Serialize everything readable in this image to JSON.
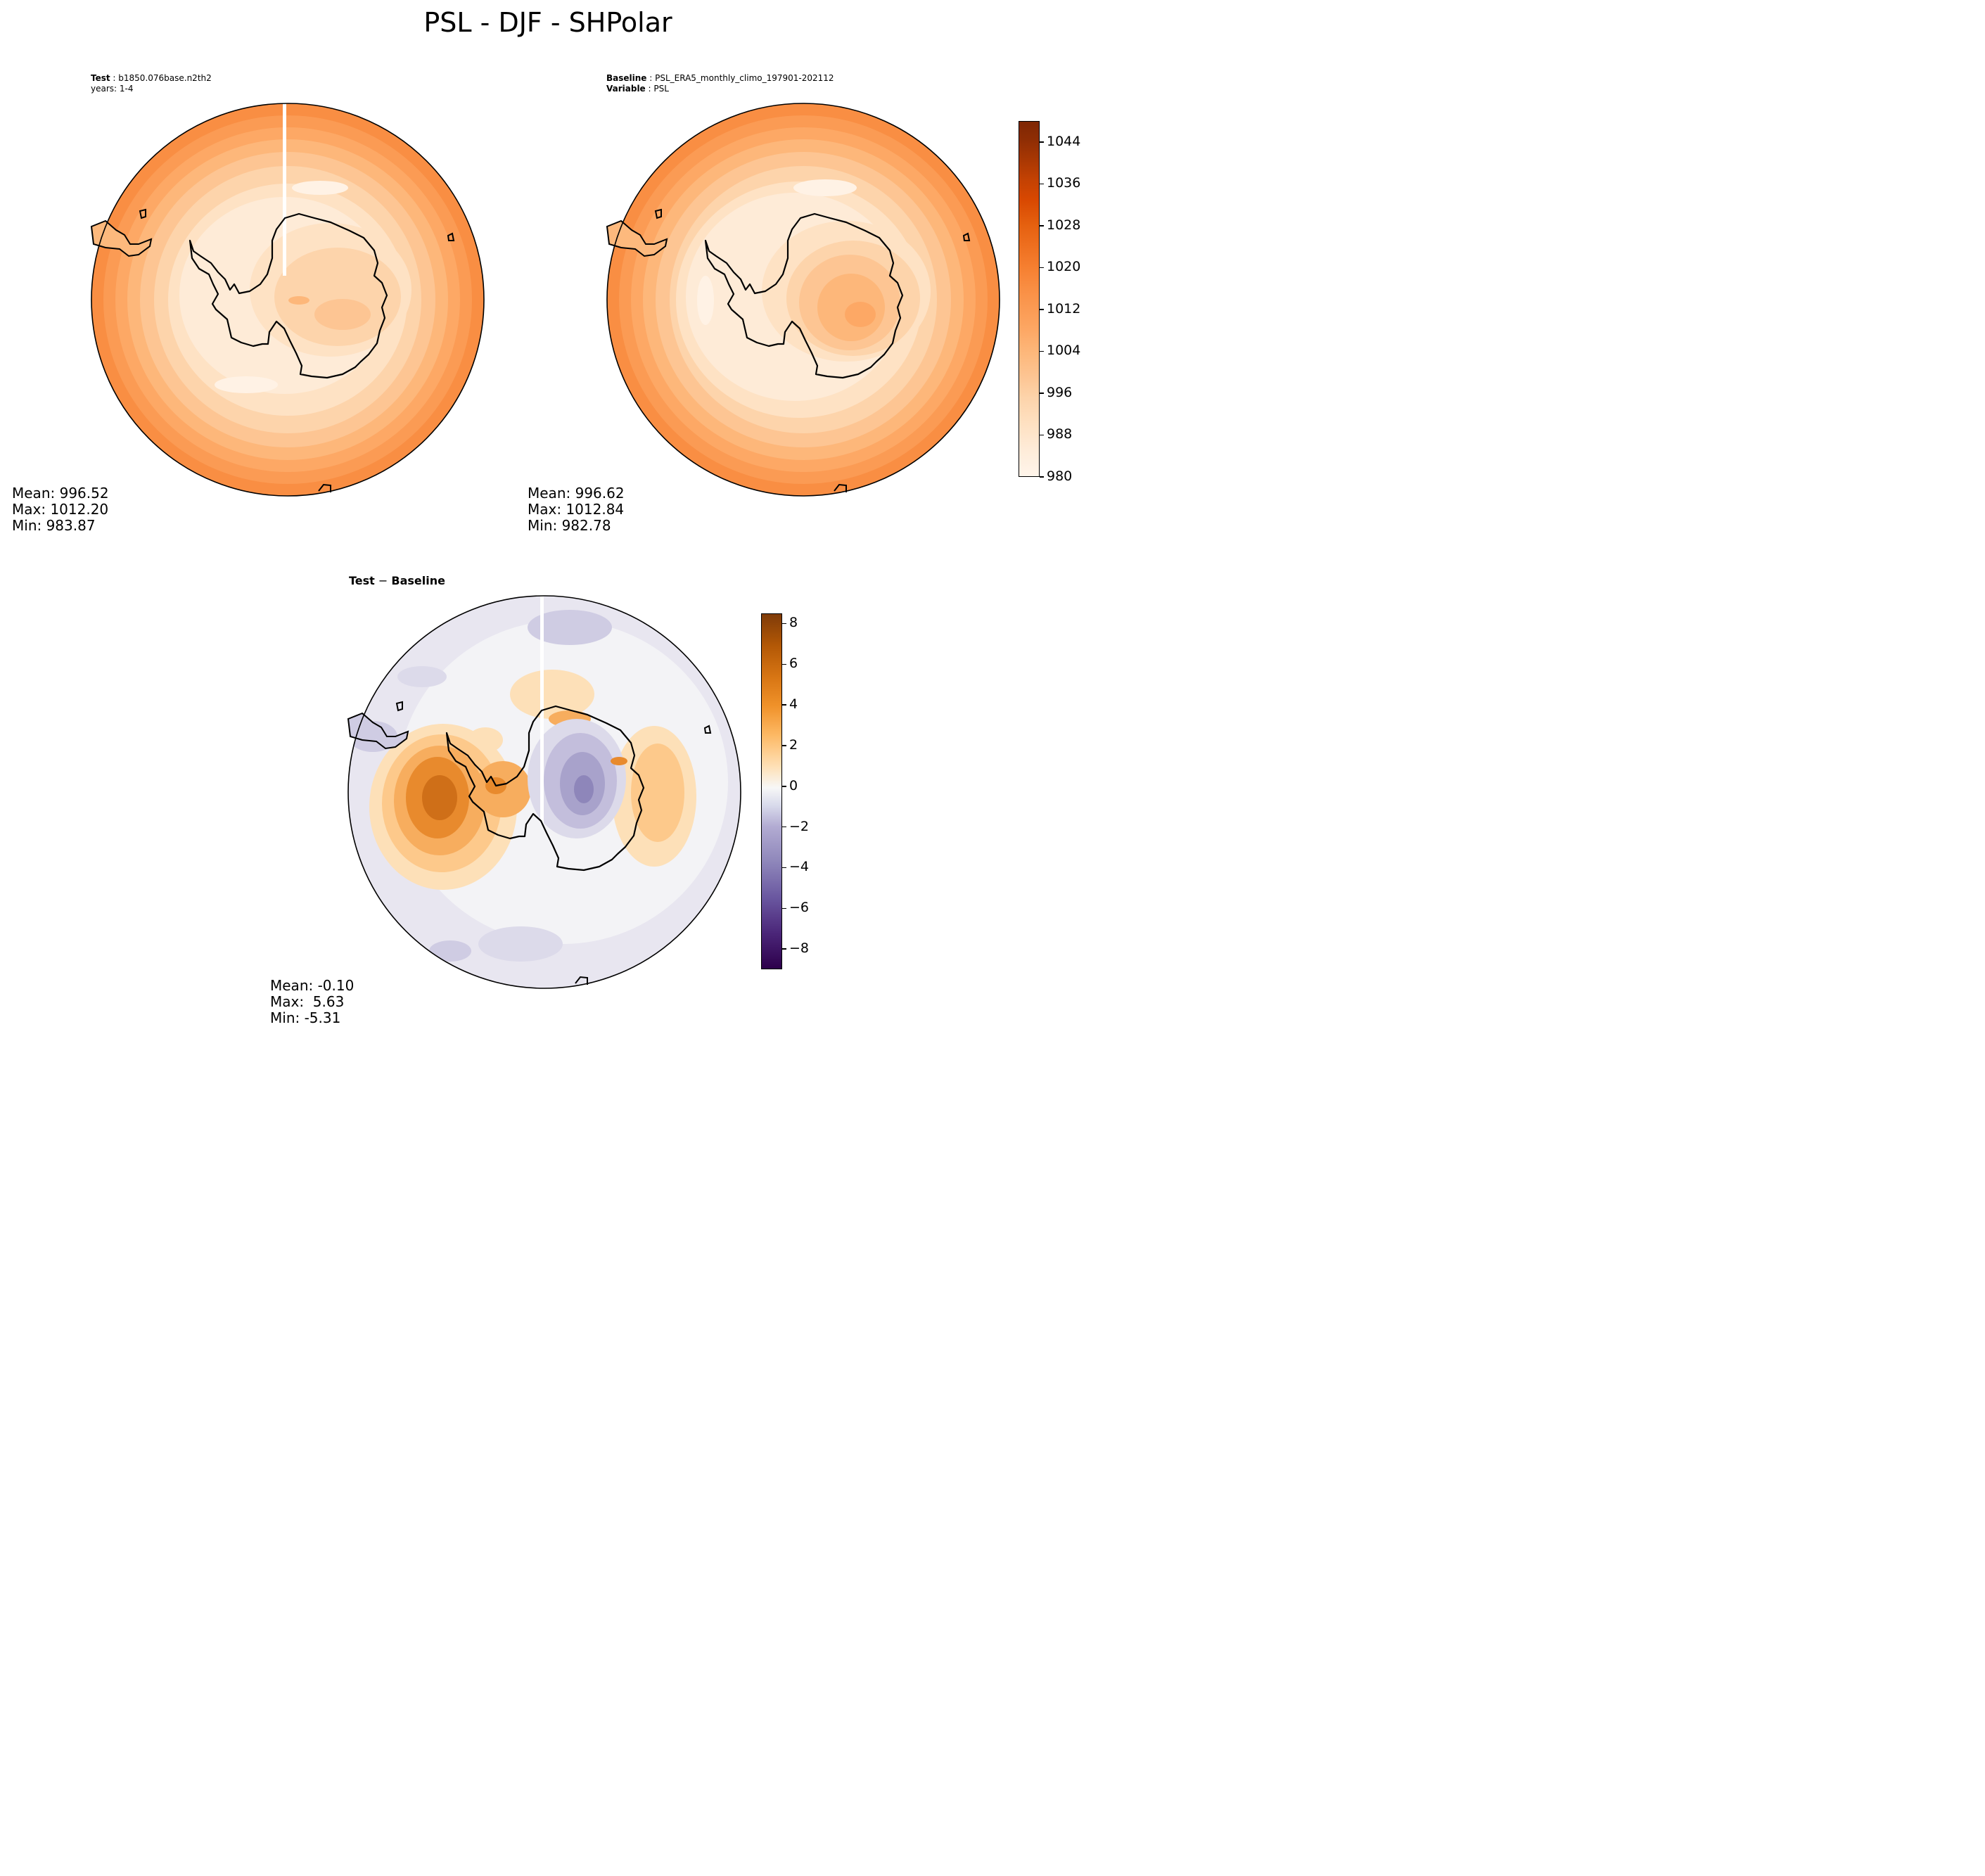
{
  "figure_title": "PSL - DJF - SHPolar",
  "test_panel": {
    "label_key": "Test",
    "label_value": "b1850.076base.n2th2",
    "years_line": "years: 1-4",
    "stats": {
      "mean": "Mean: 996.52",
      "max": "Max: 1012.20",
      "min": "Min: 983.87"
    }
  },
  "baseline_panel": {
    "label_key": "Baseline",
    "label_value": "PSL_ERA5_monthly_climo_197901-202112",
    "variable_key": "Variable",
    "variable_value": "PSL",
    "stats": {
      "mean": "Mean: 996.62",
      "max": "Max: 1012.84",
      "min": "Min: 982.78"
    }
  },
  "diff_panel": {
    "label_key": "Test",
    "label_op": " − ",
    "label_value": "Baseline",
    "stats": {
      "mean": "Mean: -0.10",
      "max": "Max:  5.63",
      "min": "Min: -5.31"
    }
  },
  "colorbar_main": {
    "ticks": [
      "1044",
      "1036",
      "1028",
      "1020",
      "1012",
      "1004",
      "996",
      "988",
      "980"
    ],
    "tick_values": [
      1044,
      1036,
      1028,
      1020,
      1012,
      1004,
      996,
      988,
      980
    ],
    "range": [
      980,
      1048
    ],
    "colormap": "Oranges",
    "color_low": "#fff5eb",
    "color_high": "#7f2704"
  },
  "colorbar_diff": {
    "ticks": [
      "8",
      "6",
      "4",
      "2",
      "0",
      "−2",
      "−4",
      "−6",
      "−8"
    ],
    "tick_values": [
      8,
      6,
      4,
      2,
      0,
      -2,
      -4,
      -6,
      -8
    ],
    "range": [
      -9,
      8.5
    ],
    "colormap": "PuOr_r",
    "color_low": "#2d004b",
    "color_mid": "#f7f7f7",
    "color_high": "#7f3b08"
  },
  "chart_data": [
    {
      "type": "heatmap",
      "title": "Test: b1850.076base.n2th2",
      "projection": "south polar stereographic",
      "units_range": [
        980,
        1048
      ],
      "mean": 996.52,
      "max": 1012.2,
      "min": 983.87
    },
    {
      "type": "heatmap",
      "title": "Baseline: PSL_ERA5_monthly_climo_197901-202112",
      "projection": "south polar stereographic",
      "units_range": [
        980,
        1048
      ],
      "mean": 996.62,
      "max": 1012.84,
      "min": 982.78
    },
    {
      "type": "heatmap",
      "title": "Test − Baseline",
      "projection": "south polar stereographic",
      "units_range": [
        -9,
        8.5
      ],
      "mean": -0.1,
      "max": 5.63,
      "min": -5.31
    }
  ]
}
